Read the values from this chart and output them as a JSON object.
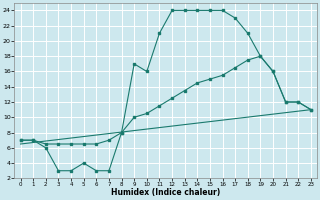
{
  "xlabel": "Humidex (Indice chaleur)",
  "bg_color": "#cde8ee",
  "grid_color": "#ffffff",
  "line_color": "#1a7a6e",
  "line1_x": [
    0,
    1,
    2,
    3,
    4,
    5,
    6,
    7,
    8,
    9,
    10,
    11,
    12,
    13,
    14,
    15,
    16,
    17,
    18,
    19,
    20,
    21,
    22,
    23
  ],
  "line1_y": [
    7,
    7,
    6,
    3,
    3,
    4,
    3,
    3,
    8,
    17,
    16,
    21,
    24,
    24,
    24,
    24,
    24,
    23,
    21,
    18,
    16,
    12,
    12,
    11
  ],
  "line2_x": [
    0,
    1,
    2,
    3,
    4,
    5,
    6,
    7,
    8,
    9,
    10,
    11,
    12,
    13,
    14,
    15,
    16,
    17,
    18,
    19,
    20,
    21,
    22,
    23
  ],
  "line2_y": [
    7,
    7,
    6.5,
    6.5,
    6.5,
    6.5,
    6.5,
    7,
    8,
    10,
    10.5,
    11.5,
    12.5,
    13.5,
    14.5,
    15,
    15.5,
    16.5,
    17.5,
    18,
    16,
    12,
    12,
    11
  ],
  "line3_x": [
    0,
    23
  ],
  "line3_y": [
    6.5,
    11
  ],
  "xlim": [
    -0.5,
    23.5
  ],
  "ylim": [
    2,
    25
  ],
  "xticks": [
    0,
    1,
    2,
    3,
    4,
    5,
    6,
    7,
    8,
    9,
    10,
    11,
    12,
    13,
    14,
    15,
    16,
    17,
    18,
    19,
    20,
    21,
    22,
    23
  ],
  "yticks": [
    2,
    4,
    6,
    8,
    10,
    12,
    14,
    16,
    18,
    20,
    22,
    24
  ]
}
